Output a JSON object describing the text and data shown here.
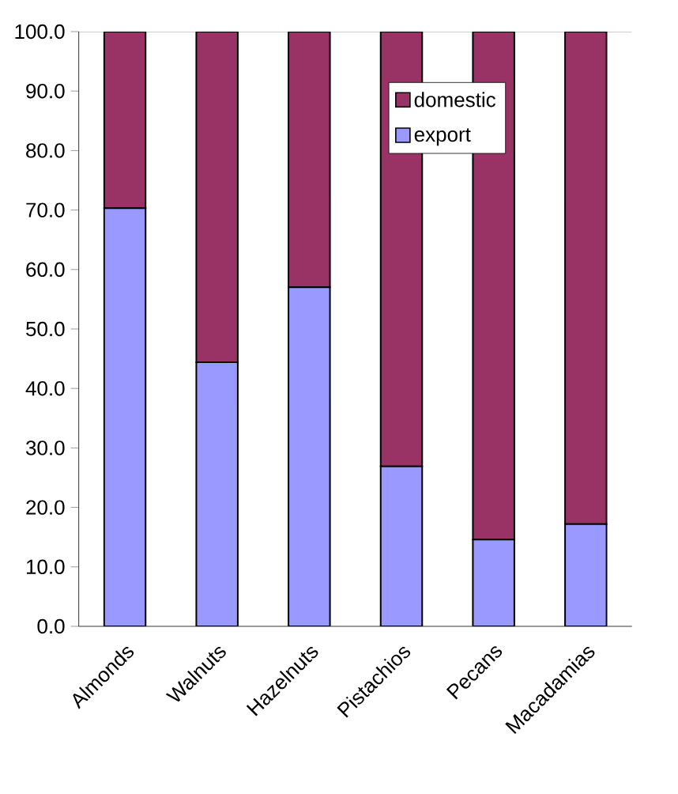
{
  "chart_data": {
    "type": "bar",
    "stacked": true,
    "categories": [
      "Almonds",
      "Walnuts",
      "Hazelnuts",
      "Pistachios",
      "Pecans",
      "Macadamias"
    ],
    "series": [
      {
        "name": "export",
        "color": "#9999ff",
        "values": [
          70.3,
          44.4,
          57.0,
          26.9,
          14.6,
          17.2
        ]
      },
      {
        "name": "domestic",
        "color": "#993366",
        "values": [
          29.7,
          55.6,
          43.0,
          73.1,
          85.4,
          82.8
        ]
      }
    ],
    "ylim": [
      0,
      100
    ],
    "yticks": [
      {
        "value": 0,
        "label": "0.0"
      },
      {
        "value": 10,
        "label": "10.0"
      },
      {
        "value": 20,
        "label": "20.0"
      },
      {
        "value": 30,
        "label": "30.0"
      },
      {
        "value": 40,
        "label": "40.0"
      },
      {
        "value": 50,
        "label": "50.0"
      },
      {
        "value": 60,
        "label": "60.0"
      },
      {
        "value": 70,
        "label": "70.0"
      },
      {
        "value": 80,
        "label": "80.0"
      },
      {
        "value": 90,
        "label": "90.0"
      },
      {
        "value": 100,
        "label": "100.0"
      }
    ],
    "legend": "top right",
    "grid": false
  }
}
